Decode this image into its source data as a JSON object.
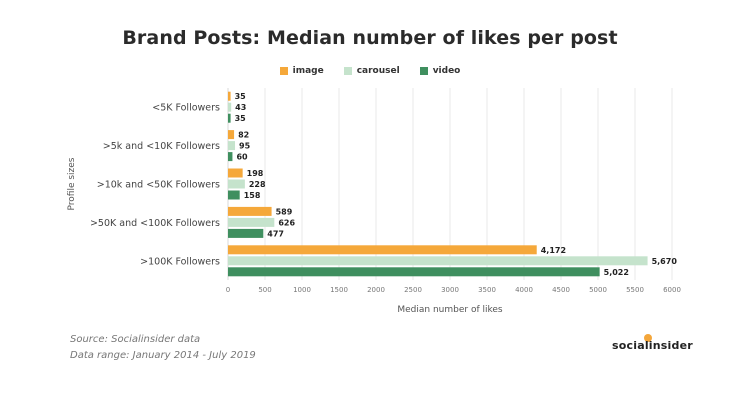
{
  "chart_data": {
    "type": "bar",
    "orientation": "horizontal",
    "title": "Brand Posts: Median number of likes per post",
    "xlabel": "Median number of likes",
    "ylabel": "Profile sizes",
    "categories": [
      "<5K Followers",
      ">5k and <10K Followers",
      ">10k and <50K Followers",
      ">50K and <100K Followers",
      ">100K Followers"
    ],
    "series": [
      {
        "name": "image",
        "color": "#f5a83a",
        "values": [
          35,
          82,
          198,
          589,
          4172
        ],
        "labels": [
          "35",
          "82",
          "198",
          "589",
          "4,172"
        ]
      },
      {
        "name": "carousel",
        "color": "#c5e3cc",
        "values": [
          43,
          95,
          228,
          626,
          5670
        ],
        "labels": [
          "43",
          "95",
          "228",
          "626",
          "5,670"
        ]
      },
      {
        "name": "video",
        "color": "#3f8f5f",
        "values": [
          35,
          60,
          158,
          477,
          5022
        ],
        "labels": [
          "35",
          "60",
          "158",
          "477",
          "5,022"
        ]
      }
    ],
    "xlim": [
      0,
      6000
    ],
    "xticks": [
      0,
      500,
      1000,
      1500,
      2000,
      2500,
      3000,
      3500,
      4000,
      4500,
      5000,
      5500,
      6000
    ],
    "grid": true,
    "legend_position": "top-center"
  },
  "footer": {
    "source": "Source: Socialinsider data",
    "range": "Data range: January 2014 - July 2019"
  },
  "brand": {
    "name": "socialinsider"
  }
}
